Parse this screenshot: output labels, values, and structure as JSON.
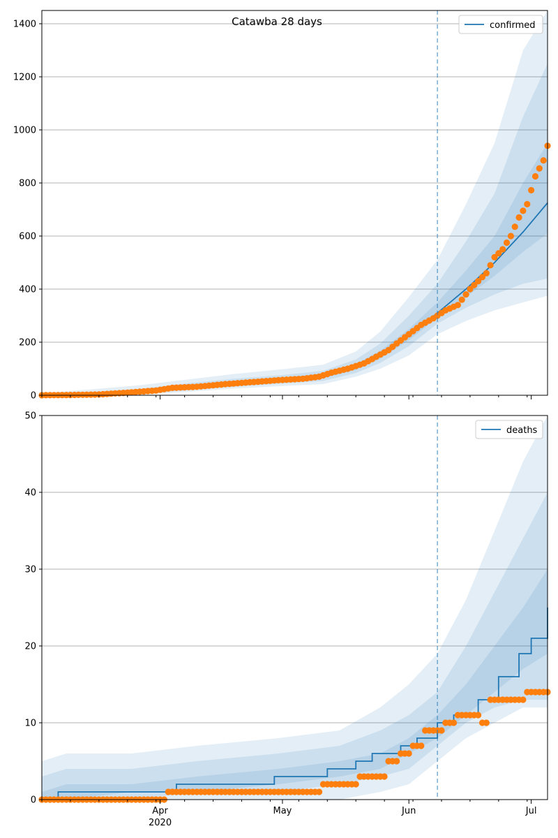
{
  "colors": {
    "fit_line": "#1f77b4",
    "observed": "#ff7f0e",
    "band": "#1f77b4",
    "grid": "#b0b0b0",
    "vline": "#1f77b4"
  },
  "chart_data": [
    {
      "type": "line",
      "title": "Catawba 28 days",
      "legend_position": "top-right",
      "grid": "y",
      "xlim": [
        "2020-03-03",
        "2020-07-05"
      ],
      "ylim": [
        0,
        1450
      ],
      "y_ticks": [
        0,
        200,
        400,
        600,
        800,
        1000,
        1200,
        1400
      ],
      "x_ticks": [],
      "vline_date": "2020-06-08",
      "series": [
        {
          "name": "confirmed",
          "kind": "line",
          "x": [
            "2020-03-03",
            "2020-03-15",
            "2020-03-27",
            "2020-04-07",
            "2020-04-19",
            "2020-05-01",
            "2020-05-11",
            "2020-05-19",
            "2020-05-25",
            "2020-06-01",
            "2020-06-08",
            "2020-06-15",
            "2020-06-22",
            "2020-06-29",
            "2020-07-05"
          ],
          "y": [
            0,
            3,
            10,
            28,
            45,
            58,
            72,
            105,
            150,
            225,
            310,
            400,
            500,
            615,
            725
          ]
        },
        {
          "name": "",
          "kind": "points",
          "x": [
            "2020-03-03",
            "2020-03-10",
            "2020-03-17",
            "2020-03-24",
            "2020-03-31",
            "2020-04-04",
            "2020-04-10",
            "2020-04-17",
            "2020-04-24",
            "2020-05-01",
            "2020-05-06",
            "2020-05-10",
            "2020-05-13",
            "2020-05-17",
            "2020-05-21",
            "2020-05-24",
            "2020-05-27",
            "2020-05-29",
            "2020-06-01",
            "2020-06-04",
            "2020-06-07",
            "2020-06-10",
            "2020-06-13",
            "2020-06-16",
            "2020-06-18",
            "2020-06-20",
            "2020-06-22",
            "2020-06-24",
            "2020-06-26",
            "2020-06-28",
            "2020-06-30",
            "2020-07-02",
            "2020-07-04",
            "2020-07-05"
          ],
          "y": [
            0,
            1,
            3,
            10,
            18,
            28,
            32,
            42,
            50,
            58,
            62,
            70,
            85,
            100,
            120,
            145,
            170,
            195,
            230,
            265,
            290,
            320,
            340,
            400,
            430,
            460,
            520,
            550,
            600,
            670,
            720,
            825,
            885,
            940
          ]
        }
      ],
      "bands": [
        {
          "x": [
            "2020-03-03",
            "2020-03-15",
            "2020-03-27",
            "2020-04-07",
            "2020-04-19",
            "2020-05-01",
            "2020-05-11",
            "2020-05-19",
            "2020-05-25",
            "2020-06-01",
            "2020-06-08",
            "2020-06-15",
            "2020-06-22",
            "2020-06-29",
            "2020-07-05"
          ],
          "low": [
            0,
            0,
            2,
            12,
            25,
            35,
            42,
            70,
            100,
            150,
            230,
            280,
            320,
            350,
            375
          ],
          "high": [
            8,
            22,
            38,
            58,
            80,
            98,
            115,
            165,
            240,
            370,
            510,
            720,
            950,
            1300,
            1450
          ]
        },
        {
          "x": [
            "2020-03-03",
            "2020-03-15",
            "2020-03-27",
            "2020-04-07",
            "2020-04-19",
            "2020-05-01",
            "2020-05-11",
            "2020-05-19",
            "2020-05-25",
            "2020-06-01",
            "2020-06-08",
            "2020-06-15",
            "2020-06-22",
            "2020-06-29",
            "2020-07-05"
          ],
          "low": [
            0,
            1,
            5,
            18,
            32,
            44,
            54,
            84,
            122,
            185,
            270,
            330,
            380,
            420,
            440
          ],
          "high": [
            4,
            12,
            24,
            44,
            62,
            76,
            92,
            135,
            195,
            300,
            420,
            580,
            760,
            1050,
            1250
          ]
        },
        {
          "x": [
            "2020-03-03",
            "2020-03-15",
            "2020-03-27",
            "2020-04-07",
            "2020-04-19",
            "2020-05-01",
            "2020-05-11",
            "2020-05-19",
            "2020-05-25",
            "2020-06-01",
            "2020-06-08",
            "2020-06-15",
            "2020-06-22",
            "2020-06-29",
            "2020-07-05"
          ],
          "low": [
            0,
            2,
            8,
            24,
            40,
            52,
            64,
            96,
            138,
            208,
            292,
            370,
            450,
            540,
            610
          ],
          "high": [
            2,
            6,
            14,
            34,
            52,
            66,
            82,
            118,
            168,
            250,
            350,
            470,
            600,
            800,
            950
          ]
        }
      ]
    },
    {
      "type": "line",
      "title": "",
      "legend_position": "top-right",
      "grid": "y",
      "xlim": [
        "2020-03-03",
        "2020-07-05"
      ],
      "ylim": [
        0,
        50
      ],
      "y_ticks": [
        0,
        10,
        20,
        30,
        40,
        50
      ],
      "x_ticks": [
        {
          "date": "2020-04-01",
          "label": "Apr",
          "sublabel": "2020"
        },
        {
          "date": "2020-05-01",
          "label": "May",
          "sublabel": ""
        },
        {
          "date": "2020-06-01",
          "label": "Jun",
          "sublabel": ""
        },
        {
          "date": "2020-07-01",
          "label": "Jul",
          "sublabel": ""
        }
      ],
      "vline_date": "2020-06-08",
      "series": [
        {
          "name": "deaths",
          "kind": "line",
          "x": [
            "2020-03-03",
            "2020-03-07",
            "2020-04-05",
            "2020-04-29",
            "2020-05-12",
            "2020-05-19",
            "2020-05-23",
            "2020-05-30",
            "2020-06-03",
            "2020-06-08",
            "2020-06-12",
            "2020-06-18",
            "2020-06-23",
            "2020-06-28",
            "2020-07-01",
            "2020-07-05"
          ],
          "y": [
            0,
            1,
            2,
            3,
            4,
            5,
            6,
            7,
            8,
            10,
            11,
            13,
            16,
            19,
            21,
            25
          ]
        },
        {
          "name": "",
          "kind": "points",
          "x": [
            "2020-03-03",
            "2020-03-15",
            "2020-03-31",
            "2020-04-03",
            "2020-04-15",
            "2020-05-08",
            "2020-05-11",
            "2020-05-14",
            "2020-05-17",
            "2020-05-20",
            "2020-05-24",
            "2020-05-27",
            "2020-05-30",
            "2020-06-02",
            "2020-06-05",
            "2020-06-08",
            "2020-06-10",
            "2020-06-13",
            "2020-06-17",
            "2020-06-19",
            "2020-06-21",
            "2020-06-24",
            "2020-06-27",
            "2020-06-30",
            "2020-07-02",
            "2020-07-05"
          ],
          "y": [
            0,
            0,
            0,
            1,
            1,
            1,
            2,
            2,
            2,
            3,
            3,
            5,
            6,
            7,
            9,
            9,
            10,
            11,
            11,
            10,
            13,
            13,
            13,
            14,
            14,
            14
          ]
        }
      ],
      "bands": [
        {
          "x": [
            "2020-03-03",
            "2020-03-09",
            "2020-03-25",
            "2020-04-10",
            "2020-04-30",
            "2020-05-15",
            "2020-05-25",
            "2020-06-01",
            "2020-06-08",
            "2020-06-15",
            "2020-06-22",
            "2020-06-29",
            "2020-07-05"
          ],
          "low": [
            0,
            0,
            0,
            0,
            0,
            0,
            1,
            2,
            5,
            8,
            10,
            12,
            12
          ],
          "high": [
            5,
            6,
            6,
            7,
            8,
            9,
            12,
            15,
            19,
            26,
            35,
            44,
            50
          ]
        },
        {
          "x": [
            "2020-03-03",
            "2020-03-09",
            "2020-03-25",
            "2020-04-10",
            "2020-04-30",
            "2020-05-15",
            "2020-05-25",
            "2020-06-01",
            "2020-06-08",
            "2020-06-15",
            "2020-06-22",
            "2020-06-29",
            "2020-07-05"
          ],
          "low": [
            0,
            0,
            0,
            1,
            1,
            2,
            3,
            4,
            7,
            10,
            12,
            13,
            13
          ],
          "high": [
            3,
            4,
            4,
            5,
            6,
            7,
            9,
            11,
            14,
            20,
            27,
            34,
            40
          ]
        },
        {
          "x": [
            "2020-03-03",
            "2020-03-09",
            "2020-03-25",
            "2020-04-10",
            "2020-04-30",
            "2020-05-15",
            "2020-05-25",
            "2020-06-01",
            "2020-06-08",
            "2020-06-15",
            "2020-06-22",
            "2020-06-29",
            "2020-07-05"
          ],
          "low": [
            0,
            0,
            1,
            1,
            2,
            3,
            4,
            6,
            8,
            11,
            14,
            17,
            19
          ],
          "high": [
            1,
            2,
            2,
            3,
            4,
            5,
            6,
            8,
            11,
            15,
            20,
            25,
            30
          ]
        }
      ]
    }
  ]
}
